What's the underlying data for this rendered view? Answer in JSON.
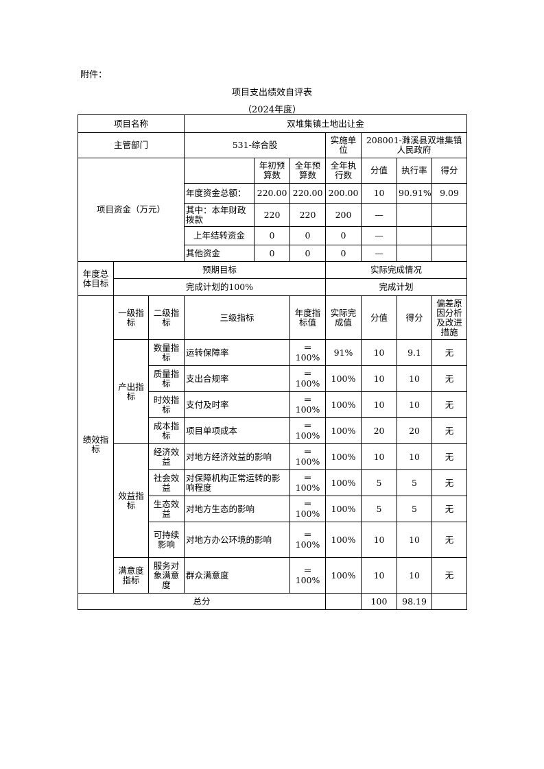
{
  "header": {
    "attachment": "附件：",
    "title": "项目支出绩效自评表",
    "year": "（2024年度）"
  },
  "project": {
    "name_label": "项目名称",
    "name": "双堆集镇土地出让金",
    "dept_label": "主管部门",
    "dept": "531-综合股",
    "unit_label": "实施单位",
    "unit": "208001-濉溪县双堆集镇人民政府"
  },
  "funds": {
    "label": "项目资金（万元）",
    "headers": [
      "年初预算数",
      "全年预算数",
      "全年执行数",
      "分值",
      "执行率",
      "得分"
    ],
    "rows": [
      {
        "label": "年度资金总额：",
        "values": [
          "220.00",
          "220.00",
          "200.00",
          "10",
          "90.91%",
          "9.09"
        ]
      },
      {
        "label": "其中：本年财政拨款",
        "values": [
          "220",
          "220",
          "200",
          "—",
          "",
          ""
        ]
      },
      {
        "label": "上年结转资金",
        "values": [
          "0",
          "0",
          "0",
          "—",
          "",
          ""
        ]
      },
      {
        "label": "其他资金",
        "values": [
          "0",
          "0",
          "0",
          "—",
          "",
          ""
        ]
      }
    ]
  },
  "goal": {
    "label": "年度总体目标",
    "expected_label": "预期目标",
    "actual_label": "实际完成情况",
    "expected": "完成计划的100%",
    "actual": "完成计划"
  },
  "perf": {
    "label": "绩效指标",
    "headers": [
      "一级指标",
      "二级指标",
      "三级指标",
      "年度指标值",
      "实际完成值",
      "分值",
      "得分",
      "偏差原因分析及改进措施"
    ],
    "groups": [
      {
        "name": "产出指标",
        "rows": [
          {
            "l2": "数量指标",
            "l3": "运转保障率",
            "target": "＝100%",
            "actual": "91%",
            "score_value": "10",
            "score": "9.1",
            "deviation": "无"
          },
          {
            "l2": "质量指标",
            "l3": "支出合规率",
            "target": "＝100%",
            "actual": "100%",
            "score_value": "10",
            "score": "10",
            "deviation": "无"
          },
          {
            "l2": "时效指标",
            "l3": "支付及时率",
            "target": "＝100%",
            "actual": "100%",
            "score_value": "10",
            "score": "10",
            "deviation": "无"
          },
          {
            "l2": "成本指标",
            "l3": "项目单项成本",
            "target": "＝100%",
            "actual": "100%",
            "score_value": "20",
            "score": "20",
            "deviation": "无"
          }
        ]
      },
      {
        "name": "效益指标",
        "rows": [
          {
            "l2": "经济效益",
            "l3": "对地方经济效益的影响",
            "target": "＝100%",
            "actual": "100%",
            "score_value": "10",
            "score": "10",
            "deviation": "无"
          },
          {
            "l2": "社会效益",
            "l3": "对保障机构正常运转的影响程度",
            "target": "＝100%",
            "actual": "100%",
            "score_value": "5",
            "score": "5",
            "deviation": "无"
          },
          {
            "l2": "生态效益",
            "l3": "对地方生态的影响",
            "target": "＝100%",
            "actual": "100%",
            "score_value": "5",
            "score": "5",
            "deviation": "无"
          },
          {
            "l2": "可持续影响",
            "l3": "对地方办公环境的影响",
            "target": "＝100%",
            "actual": "100%",
            "score_value": "10",
            "score": "10",
            "deviation": "无"
          }
        ]
      },
      {
        "name": "满意度指标",
        "rows": [
          {
            "l2": "服务对象满意度",
            "l3": "群众满意度",
            "target": "＝100%",
            "actual": "100%",
            "score_value": "10",
            "score": "10",
            "deviation": "无"
          }
        ]
      }
    ]
  },
  "total": {
    "label": "总分",
    "score_value": "100",
    "score": "98.19"
  }
}
